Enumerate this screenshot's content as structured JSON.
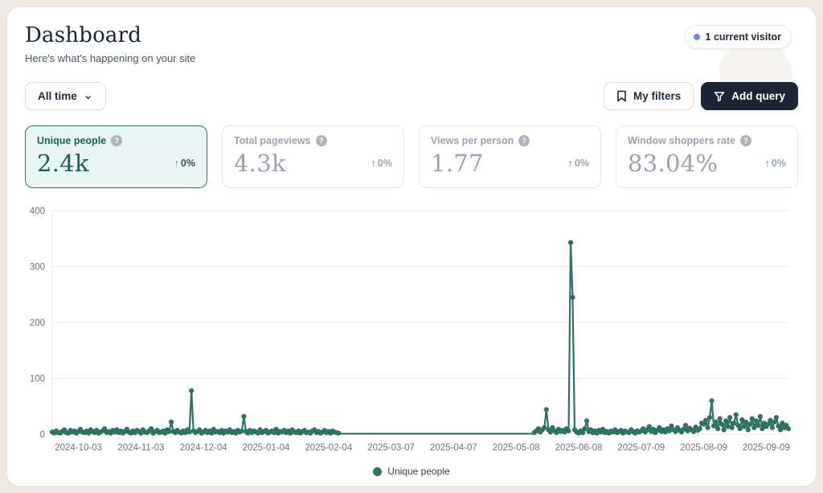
{
  "header": {
    "title": "Dashboard",
    "subtitle": "Here's what's happening on your site",
    "visitor_badge": "1 current visitor"
  },
  "toolbar": {
    "date_range_label": "All time",
    "my_filters_label": "My filters",
    "add_query_label": "Add query"
  },
  "icons": {
    "chevron_down": "⌄",
    "arrow_up": "↑",
    "help": "?"
  },
  "stats": [
    {
      "label": "Unique people",
      "value": "2.4k",
      "delta": "0%"
    },
    {
      "label": "Total pageviews",
      "value": "4.3k",
      "delta": "0%"
    },
    {
      "label": "Views per person",
      "value": "1.77",
      "delta": "0%"
    },
    {
      "label": "Window shoppers rate",
      "value": "83.04%",
      "delta": "0%"
    }
  ],
  "legend": {
    "label": "Unique people"
  },
  "colors": {
    "accent_teal": "#2e7265",
    "selected_card_bg": "#e9f5f2",
    "green_delta": "#3aa55c",
    "dark_button": "#1b2535",
    "grid_line": "#e8e8e8",
    "axis_text": "#6b7280",
    "badge_dot_blue": "#7488f7"
  },
  "chart_data": {
    "type": "line",
    "title": "",
    "xlabel": "",
    "ylabel": "",
    "legend_position": "bottom",
    "grid": "horizontal",
    "ylim": [
      0,
      400
    ],
    "y_ticks": [
      0,
      100,
      200,
      300,
      400
    ],
    "x_ticks": [
      {
        "label": "2024-10-03",
        "day": 13
      },
      {
        "label": "2024-11-03",
        "day": 44
      },
      {
        "label": "2024-12-04",
        "day": 75
      },
      {
        "label": "2025-01-04",
        "day": 106
      },
      {
        "label": "2025-02-04",
        "day": 137
      },
      {
        "label": "2025-03-07",
        "day": 168
      },
      {
        "label": "2025-04-07",
        "day": 199
      },
      {
        "label": "2025-05-08",
        "day": 230
      },
      {
        "label": "2025-06-08",
        "day": 261
      },
      {
        "label": "2025-07-09",
        "day": 292
      },
      {
        "label": "2025-08-09",
        "day": 323
      },
      {
        "label": "2025-09-09",
        "day": 354
      }
    ],
    "start_date": "2024-09-20",
    "end_date": "2025-09-20",
    "total_days": 365,
    "series": [
      {
        "name": "Unique people",
        "color": "#2e7265",
        "values": [
          4,
          2,
          6,
          3,
          2,
          5,
          8,
          3,
          2,
          7,
          4,
          6,
          2,
          5,
          9,
          4,
          3,
          6,
          2,
          8,
          5,
          3,
          7,
          2,
          4,
          6,
          10,
          3,
          5,
          2,
          7,
          4,
          8,
          3,
          6,
          2,
          5,
          9,
          4,
          2,
          6,
          3,
          7,
          5,
          2,
          8,
          4,
          3,
          6,
          10,
          2,
          5,
          7,
          3,
          4,
          6,
          2,
          8,
          5,
          22,
          5,
          3,
          7,
          4,
          2,
          6,
          3,
          8,
          4,
          78,
          6,
          3,
          5,
          8,
          2,
          4,
          7,
          3,
          6,
          2,
          9,
          4,
          5,
          3,
          7,
          2,
          6,
          4,
          8,
          3,
          5,
          2,
          7,
          4,
          6,
          32,
          5,
          2,
          7,
          3,
          6,
          4,
          2,
          8,
          3,
          5,
          7,
          2,
          4,
          6,
          3,
          9,
          2,
          5,
          4,
          7,
          3,
          6,
          2,
          8,
          4,
          3,
          6,
          2,
          5,
          7,
          3,
          4,
          2,
          6,
          8,
          3,
          5,
          2,
          4,
          7,
          3,
          5,
          2,
          6,
          4,
          3,
          2,
          1,
          1,
          1,
          1,
          1,
          1,
          1,
          1,
          1,
          1,
          1,
          1,
          1,
          1,
          1,
          1,
          1,
          1,
          1,
          1,
          1,
          1,
          1,
          1,
          1,
          1,
          1,
          1,
          1,
          1,
          1,
          1,
          1,
          1,
          1,
          1,
          1,
          1,
          1,
          1,
          1,
          1,
          1,
          1,
          1,
          1,
          1,
          1,
          1,
          1,
          1,
          1,
          1,
          1,
          1,
          1,
          1,
          1,
          1,
          1,
          1,
          1,
          1,
          1,
          1,
          1,
          1,
          1,
          1,
          1,
          1,
          1,
          1,
          1,
          1,
          1,
          1,
          1,
          1,
          1,
          1,
          1,
          1,
          1,
          1,
          1,
          1,
          1,
          1,
          1,
          1,
          1,
          1,
          1,
          1,
          1,
          3,
          6,
          10,
          4,
          8,
          12,
          44,
          8,
          4,
          12,
          6,
          3,
          9,
          5,
          7,
          4,
          10,
          6,
          343,
          245,
          8,
          4,
          2,
          6,
          3,
          10,
          24,
          5,
          8,
          3,
          6,
          2,
          7,
          4,
          9,
          3,
          5,
          2,
          6,
          4,
          8,
          3,
          5,
          7,
          2,
          6,
          4,
          3,
          8,
          5,
          2,
          6,
          4,
          6,
          10,
          4,
          8,
          14,
          5,
          9,
          3,
          7,
          12,
          5,
          8,
          4,
          10,
          6,
          15,
          8,
          5,
          12,
          7,
          4,
          9,
          16,
          6,
          11,
          8,
          5,
          13,
          7,
          10,
          20,
          18,
          25,
          12,
          30,
          60,
          15,
          22,
          10,
          28,
          18,
          8,
          24,
          14,
          30,
          12,
          20,
          35,
          16,
          10,
          26,
          14,
          22,
          8,
          18,
          28,
          12,
          24,
          16,
          32,
          10,
          20,
          14,
          18,
          25,
          12,
          22,
          30,
          15,
          8,
          20,
          12,
          16,
          10
        ]
      }
    ]
  }
}
